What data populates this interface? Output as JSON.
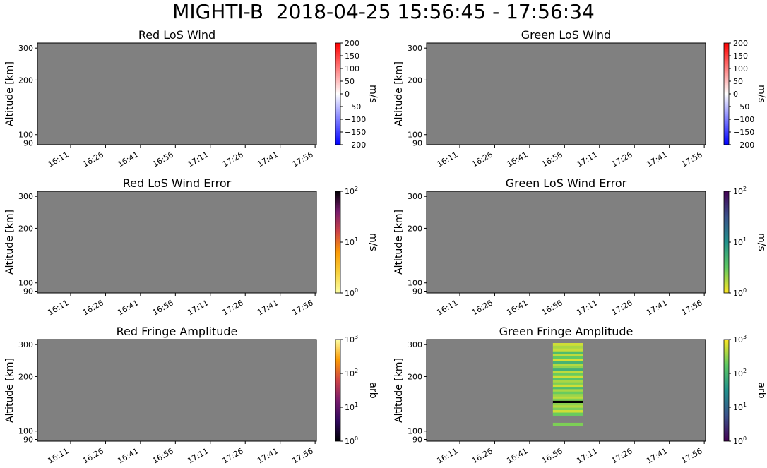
{
  "figure": {
    "title": "MIGHTI-B  2018-04-25 15:56:45 - 17:56:34"
  },
  "chart_data": [
    {
      "type": "heatmap",
      "title": "Red LoS Wind",
      "ylabel": "Altitude [km]",
      "yscale": "log",
      "ylim": [
        88,
        320
      ],
      "yticks": [
        90,
        100,
        200,
        300
      ],
      "xlim": [
        "15:56:45",
        "17:56:34"
      ],
      "xticks": [
        "16:11",
        "16:26",
        "16:41",
        "16:56",
        "17:11",
        "17:26",
        "17:41",
        "17:56"
      ],
      "colorbar": {
        "label": "m/s",
        "scale": "linear",
        "range": [
          -200,
          200
        ],
        "ticks": [
          "200",
          "150",
          "100",
          "50",
          "0",
          "−50",
          "−100",
          "−150",
          "−200"
        ],
        "colormap": "bwr"
      },
      "values": []
    },
    {
      "type": "heatmap",
      "title": "Green LoS Wind",
      "ylabel": "Altitude [km]",
      "yscale": "log",
      "ylim": [
        88,
        320
      ],
      "yticks": [
        90,
        100,
        200,
        300
      ],
      "xlim": [
        "15:56:45",
        "17:56:34"
      ],
      "xticks": [
        "16:11",
        "16:26",
        "16:41",
        "16:56",
        "17:11",
        "17:26",
        "17:41",
        "17:56"
      ],
      "colorbar": {
        "label": "m/s",
        "scale": "linear",
        "range": [
          -200,
          200
        ],
        "ticks": [
          "200",
          "150",
          "100",
          "50",
          "0",
          "−50",
          "−100",
          "−150",
          "−200"
        ],
        "colormap": "bwr"
      },
      "values": []
    },
    {
      "type": "heatmap",
      "title": "Red LoS Wind Error",
      "ylabel": "Altitude [km]",
      "yscale": "log",
      "ylim": [
        88,
        320
      ],
      "yticks": [
        90,
        100,
        200,
        300
      ],
      "xlim": [
        "15:56:45",
        "17:56:34"
      ],
      "xticks": [
        "16:11",
        "16:26",
        "16:41",
        "16:56",
        "17:11",
        "17:26",
        "17:41",
        "17:56"
      ],
      "colorbar": {
        "label": "m/s",
        "scale": "log",
        "range": [
          1,
          100
        ],
        "ticks": [
          {
            "base": "10",
            "exp": "2"
          },
          {
            "base": "10",
            "exp": "1"
          },
          {
            "base": "10",
            "exp": "0"
          }
        ],
        "colormap": "inferno_r"
      },
      "values": []
    },
    {
      "type": "heatmap",
      "title": "Green LoS Wind Error",
      "ylabel": "Altitude [km]",
      "yscale": "log",
      "ylim": [
        88,
        320
      ],
      "yticks": [
        90,
        100,
        200,
        300
      ],
      "xlim": [
        "15:56:45",
        "17:56:34"
      ],
      "xticks": [
        "16:11",
        "16:26",
        "16:41",
        "16:56",
        "17:11",
        "17:26",
        "17:41",
        "17:56"
      ],
      "colorbar": {
        "label": "m/s",
        "scale": "log",
        "range": [
          1,
          100
        ],
        "ticks": [
          {
            "base": "10",
            "exp": "2"
          },
          {
            "base": "10",
            "exp": "1"
          },
          {
            "base": "10",
            "exp": "0"
          }
        ],
        "colormap": "viridis_r"
      },
      "values": []
    },
    {
      "type": "heatmap",
      "title": "Red Fringe Amplitude",
      "ylabel": "Altitude [km]",
      "yscale": "log",
      "ylim": [
        88,
        320
      ],
      "yticks": [
        90,
        100,
        200,
        300
      ],
      "xlim": [
        "15:56:45",
        "17:56:34"
      ],
      "xticks": [
        "16:11",
        "16:26",
        "16:41",
        "16:56",
        "17:11",
        "17:26",
        "17:41",
        "17:56"
      ],
      "colorbar": {
        "label": "arb",
        "scale": "log",
        "range": [
          1,
          1000
        ],
        "ticks": [
          {
            "base": "10",
            "exp": "3"
          },
          {
            "base": "10",
            "exp": "2"
          },
          {
            "base": "10",
            "exp": "1"
          },
          {
            "base": "10",
            "exp": "0"
          }
        ],
        "colormap": "inferno"
      },
      "values": []
    },
    {
      "type": "heatmap",
      "title": "Green Fringe Amplitude",
      "ylabel": "Altitude [km]",
      "yscale": "log",
      "ylim": [
        88,
        320
      ],
      "yticks": [
        90,
        100,
        200,
        300
      ],
      "xlim": [
        "15:56:45",
        "17:56:34"
      ],
      "xticks": [
        "16:11",
        "16:26",
        "16:41",
        "16:56",
        "17:11",
        "17:26",
        "17:41",
        "17:56"
      ],
      "colorbar": {
        "label": "arb",
        "scale": "log",
        "range": [
          1,
          1000
        ],
        "ticks": [
          {
            "base": "10",
            "exp": "3"
          },
          {
            "base": "10",
            "exp": "2"
          },
          {
            "base": "10",
            "exp": "1"
          },
          {
            "base": "10",
            "exp": "0"
          }
        ],
        "colormap": "viridis"
      },
      "x_range": [
        "16:51",
        "17:04"
      ],
      "values": [
        {
          "alt": 300,
          "value": 600
        },
        {
          "alt": 290,
          "value": 400
        },
        {
          "alt": 280,
          "value": 550
        },
        {
          "alt": 270,
          "value": 120
        },
        {
          "alt": 262,
          "value": 500
        },
        {
          "alt": 254,
          "value": 180
        },
        {
          "alt": 246,
          "value": 650
        },
        {
          "alt": 238,
          "value": 90
        },
        {
          "alt": 231,
          "value": 450
        },
        {
          "alt": 224,
          "value": 300
        },
        {
          "alt": 217,
          "value": 80
        },
        {
          "alt": 211,
          "value": 500
        },
        {
          "alt": 205,
          "value": 200
        },
        {
          "alt": 199,
          "value": 600
        },
        {
          "alt": 193,
          "value": 150
        },
        {
          "alt": 187,
          "value": 400
        },
        {
          "alt": 182,
          "value": 250
        },
        {
          "alt": 177,
          "value": 600
        },
        {
          "alt": 172,
          "value": 120
        },
        {
          "alt": 167,
          "value": 400
        },
        {
          "alt": 162,
          "value": 200
        },
        {
          "alt": 157,
          "value": 350
        },
        {
          "alt": 152,
          "value": 500
        },
        {
          "alt": 148,
          "value": 250
        },
        {
          "alt": 144,
          "value": 1
        },
        {
          "alt": 140,
          "value": 300
        },
        {
          "alt": 136,
          "value": 450
        },
        {
          "alt": 132,
          "value": 250
        },
        {
          "alt": 128,
          "value": 600
        },
        {
          "alt": 124,
          "value": 200
        },
        {
          "alt": 109,
          "value": 250
        }
      ]
    }
  ]
}
